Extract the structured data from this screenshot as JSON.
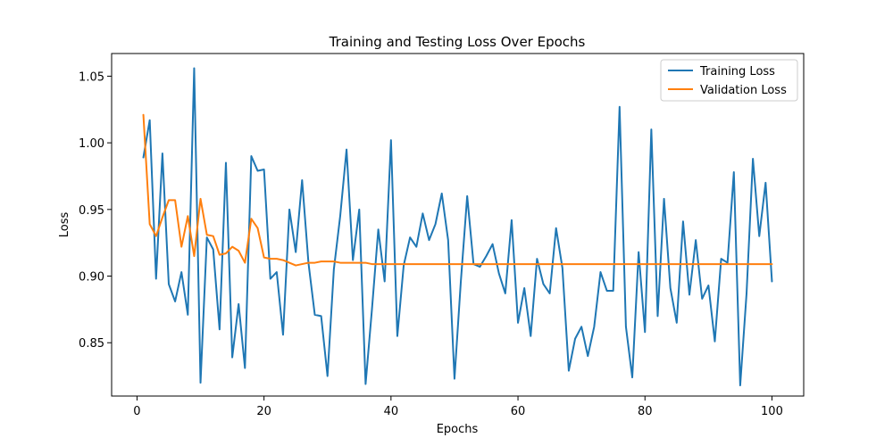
{
  "chart_data": {
    "type": "line",
    "title": "Training and Testing Loss Over Epochs",
    "xlabel": "Epochs",
    "ylabel": "Loss",
    "xlim": [
      -4,
      105
    ],
    "ylim": [
      0.81,
      1.067
    ],
    "xticks": [
      0,
      20,
      40,
      60,
      80,
      100
    ],
    "yticks": [
      0.85,
      0.9,
      0.95,
      1.0,
      1.05
    ],
    "ytick_labels": [
      "0.85",
      "0.90",
      "0.95",
      "1.00",
      "1.05"
    ],
    "grid": false,
    "legend_position": "top-right",
    "x": [
      1,
      2,
      3,
      4,
      5,
      6,
      7,
      8,
      9,
      10,
      11,
      12,
      13,
      14,
      15,
      16,
      17,
      18,
      19,
      20,
      21,
      22,
      23,
      24,
      25,
      26,
      27,
      28,
      29,
      30,
      31,
      32,
      33,
      34,
      35,
      36,
      37,
      38,
      39,
      40,
      41,
      42,
      43,
      44,
      45,
      46,
      47,
      48,
      49,
      50,
      51,
      52,
      53,
      54,
      55,
      56,
      57,
      58,
      59,
      60,
      61,
      62,
      63,
      64,
      65,
      66,
      67,
      68,
      69,
      70,
      71,
      72,
      73,
      74,
      75,
      76,
      77,
      78,
      79,
      80,
      81,
      82,
      83,
      84,
      85,
      86,
      87,
      88,
      89,
      90,
      91,
      92,
      93,
      94,
      95,
      96,
      97,
      98,
      99,
      100
    ],
    "series": [
      {
        "name": "Training Loss",
        "color": "#1f77b4",
        "values": [
          0.989,
          1.017,
          0.898,
          0.992,
          0.894,
          0.881,
          0.903,
          0.871,
          1.056,
          0.82,
          0.929,
          0.92,
          0.86,
          0.985,
          0.839,
          0.879,
          0.831,
          0.99,
          0.979,
          0.98,
          0.898,
          0.903,
          0.856,
          0.95,
          0.918,
          0.972,
          0.91,
          0.871,
          0.87,
          0.825,
          0.905,
          0.945,
          0.995,
          0.912,
          0.95,
          0.819,
          0.875,
          0.935,
          0.896,
          1.002,
          0.855,
          0.908,
          0.929,
          0.922,
          0.947,
          0.927,
          0.939,
          0.962,
          0.927,
          0.823,
          0.896,
          0.96,
          0.909,
          0.907,
          0.915,
          0.924,
          0.902,
          0.887,
          0.942,
          0.865,
          0.891,
          0.855,
          0.913,
          0.894,
          0.887,
          0.936,
          0.906,
          0.829,
          0.853,
          0.862,
          0.84,
          0.862,
          0.903,
          0.889,
          0.889,
          1.027,
          0.862,
          0.824,
          0.918,
          0.858,
          1.01,
          0.87,
          0.958,
          0.891,
          0.865,
          0.941,
          0.886,
          0.927,
          0.883,
          0.893,
          0.851,
          0.913,
          0.91,
          0.978,
          0.818,
          0.887,
          0.988,
          0.93,
          0.97,
          0.896
        ]
      },
      {
        "name": "Validation Loss",
        "color": "#ff7f0e",
        "values": [
          1.021,
          0.939,
          0.93,
          0.944,
          0.957,
          0.957,
          0.922,
          0.945,
          0.915,
          0.958,
          0.931,
          0.93,
          0.916,
          0.917,
          0.922,
          0.919,
          0.91,
          0.943,
          0.936,
          0.914,
          0.913,
          0.913,
          0.912,
          0.91,
          0.908,
          0.909,
          0.91,
          0.91,
          0.911,
          0.911,
          0.911,
          0.91,
          0.91,
          0.91,
          0.91,
          0.91,
          0.909,
          0.909,
          0.909,
          0.909,
          0.909,
          0.909,
          0.909,
          0.909,
          0.909,
          0.909,
          0.909,
          0.909,
          0.909,
          0.909,
          0.909,
          0.909,
          0.909,
          0.909,
          0.909,
          0.909,
          0.909,
          0.909,
          0.909,
          0.909,
          0.909,
          0.909,
          0.909,
          0.909,
          0.909,
          0.909,
          0.909,
          0.909,
          0.909,
          0.909,
          0.909,
          0.909,
          0.909,
          0.909,
          0.909,
          0.909,
          0.909,
          0.909,
          0.909,
          0.909,
          0.909,
          0.909,
          0.909,
          0.909,
          0.909,
          0.909,
          0.909,
          0.909,
          0.909,
          0.909,
          0.909,
          0.909,
          0.909,
          0.909,
          0.909,
          0.909,
          0.909,
          0.909,
          0.909,
          0.909
        ]
      }
    ]
  }
}
